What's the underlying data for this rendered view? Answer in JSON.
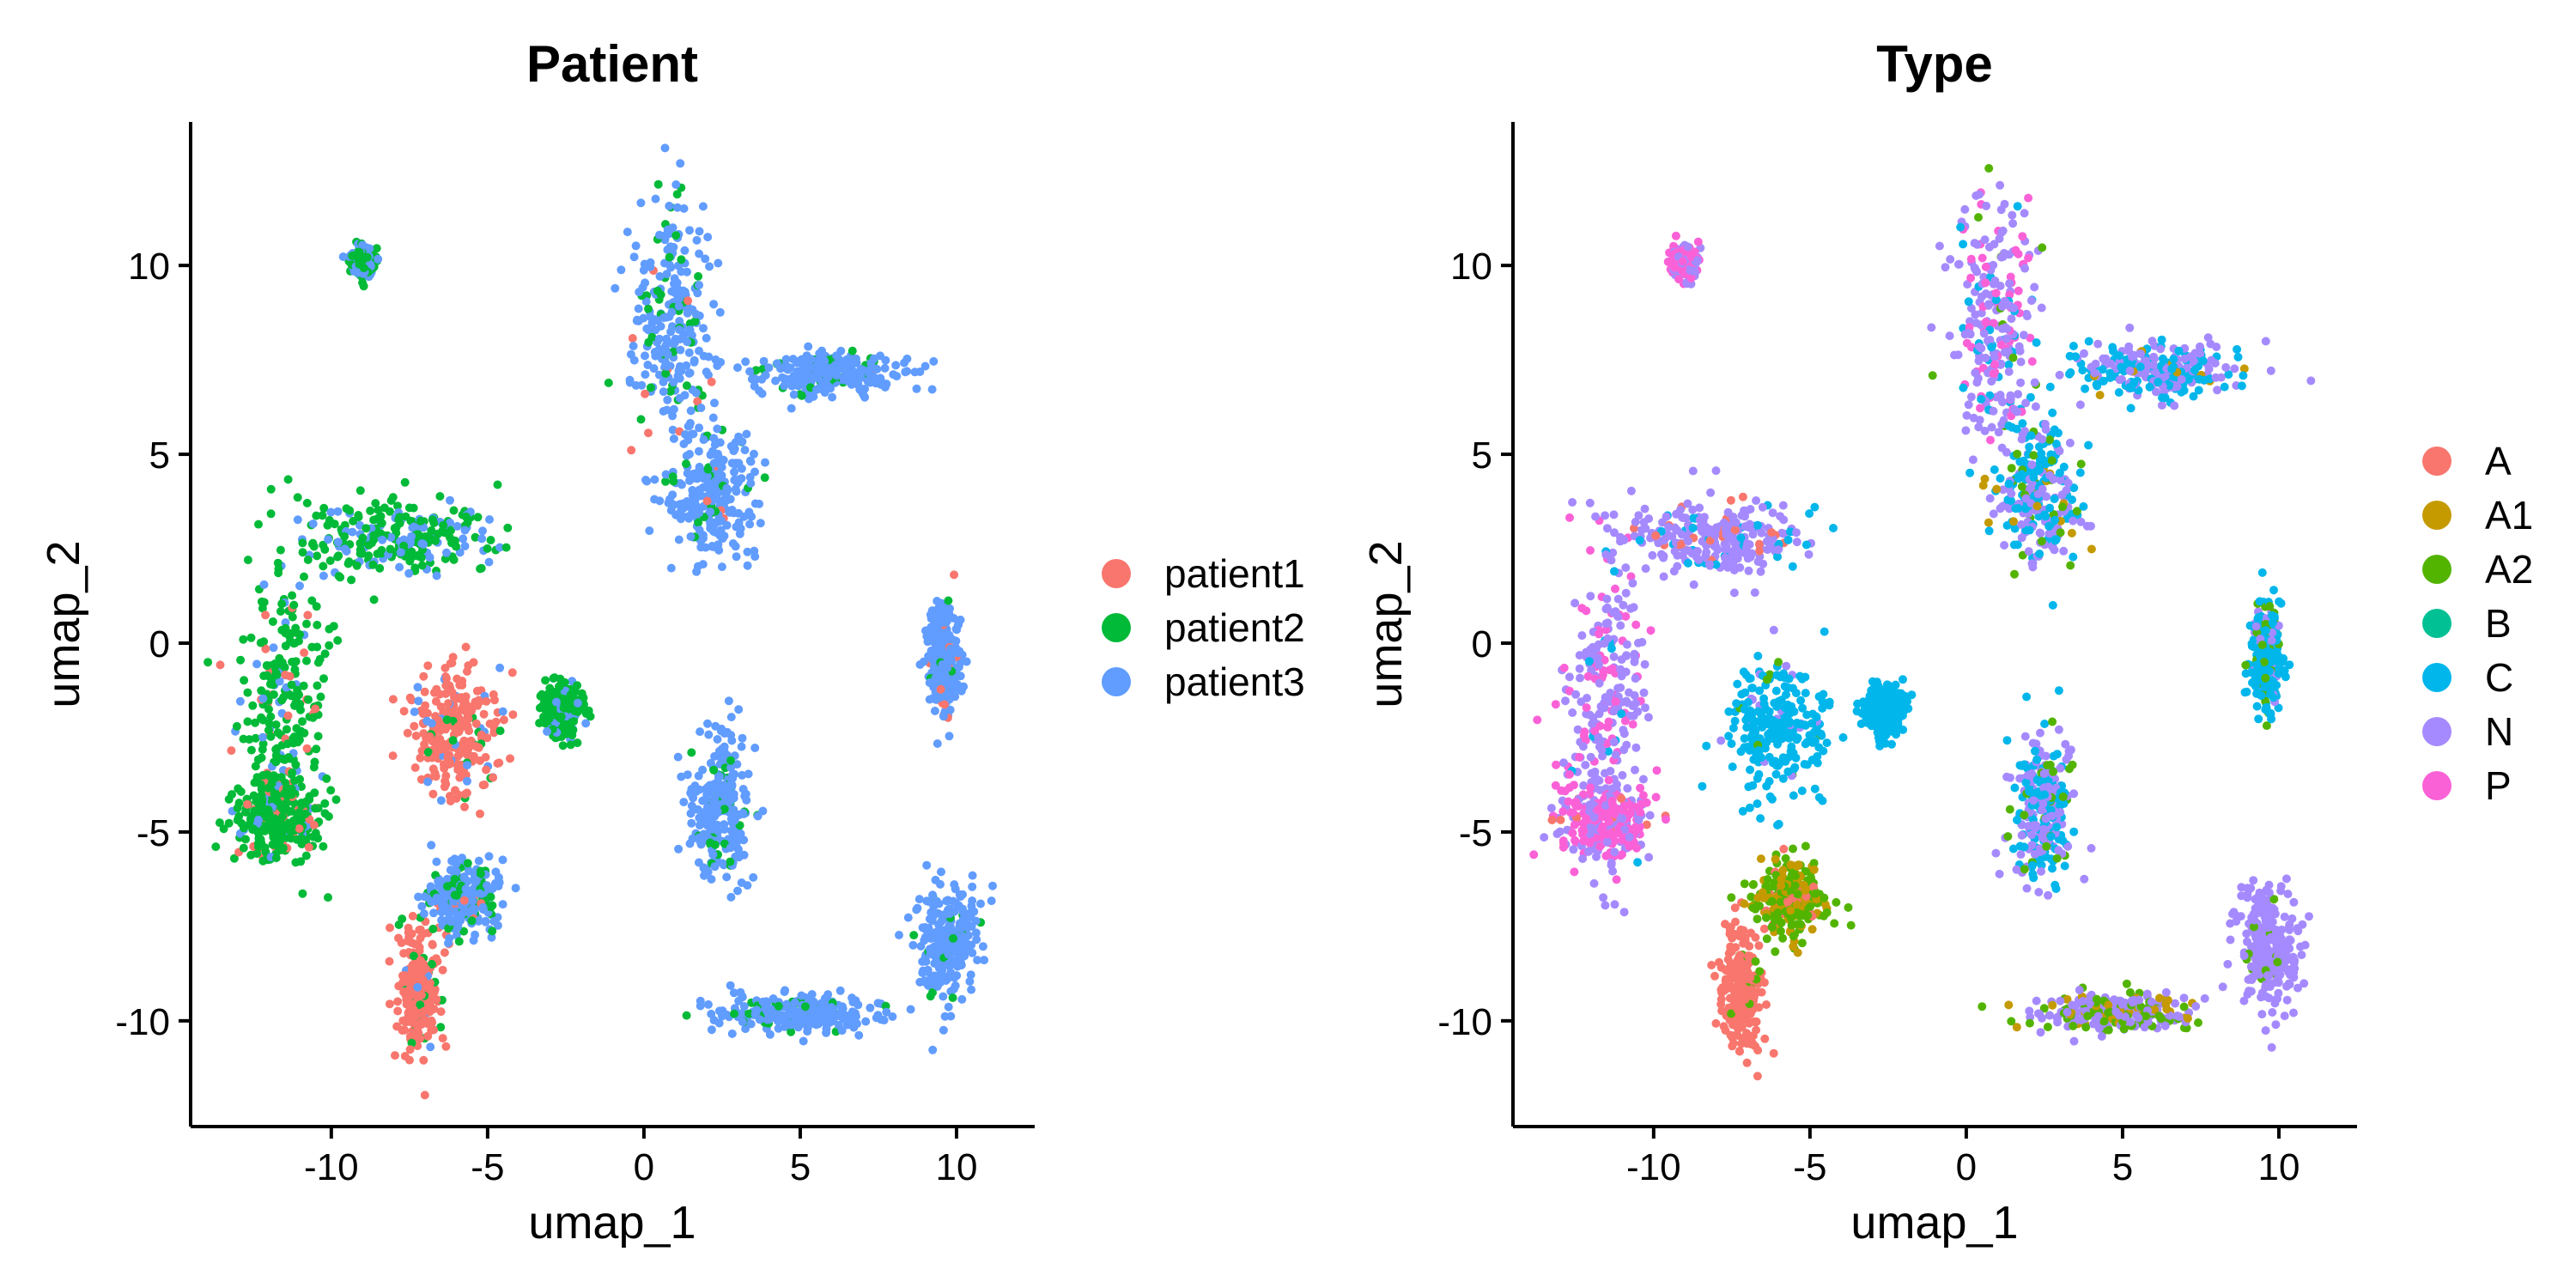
{
  "chart_data": [
    {
      "type": "scatter",
      "title": "Patient",
      "xlabel": "umap_1",
      "ylabel": "umap_2",
      "xlim": [
        -14.5,
        12.5
      ],
      "ylim": [
        -12.8,
        13.8
      ],
      "x_ticks": [
        -10,
        -5,
        0,
        5,
        10
      ],
      "y_ticks": [
        -10,
        -5,
        0,
        5,
        10
      ],
      "x_tick_labels": [
        "-10",
        "-5",
        "0",
        "5",
        "10"
      ],
      "y_tick_labels": [
        "-10",
        "-5",
        "0",
        "5",
        "10"
      ],
      "grid": false,
      "legend_position": "right",
      "series": [
        {
          "name": "patient1",
          "color": "#F8766D"
        },
        {
          "name": "patient2",
          "color": "#00BA38"
        },
        {
          "name": "patient3",
          "color": "#619CFF"
        }
      ],
      "clusters": [
        {
          "label": "top-center arm",
          "center": [
            0.9,
            8.5
          ],
          "spread": [
            1.2,
            3.0
          ],
          "composition": {
            "patient3": 0.8,
            "patient2": 0.17,
            "patient1": 0.03
          }
        },
        {
          "label": "top-center body",
          "center": [
            2.2,
            4.0
          ],
          "spread": [
            1.3,
            1.6
          ],
          "composition": {
            "patient3": 0.9,
            "patient2": 0.08,
            "patient1": 0.02
          }
        },
        {
          "label": "top-right branch",
          "center": [
            6.0,
            7.2
          ],
          "spread": [
            2.3,
            0.6
          ],
          "composition": {
            "patient3": 0.85,
            "patient2": 0.12,
            "patient1": 0.03
          }
        },
        {
          "label": "small top-left",
          "center": [
            -9.0,
            10.1
          ],
          "spread": [
            0.35,
            0.35
          ],
          "composition": {
            "patient2": 0.5,
            "patient3": 0.5
          }
        },
        {
          "label": "center-left loop",
          "center": [
            -6.0,
            -2.3
          ],
          "spread": [
            1.4,
            1.6
          ],
          "composition": {
            "patient1": 0.85,
            "patient3": 0.1,
            "patient2": 0.05
          }
        },
        {
          "label": "left outer arc",
          "center": [
            -11.5,
            -1.5
          ],
          "spread": [
            1.2,
            3.5
          ],
          "composition": {
            "patient2": 0.75,
            "patient3": 0.15,
            "patient1": 0.1
          }
        },
        {
          "label": "left lower lobe",
          "center": [
            -11.7,
            -4.7
          ],
          "spread": [
            1.3,
            0.9
          ],
          "composition": {
            "patient2": 0.8,
            "patient1": 0.12,
            "patient3": 0.08
          }
        },
        {
          "label": "upper-left ring",
          "center": [
            -8.0,
            2.8
          ],
          "spread": [
            2.8,
            0.9
          ],
          "composition": {
            "patient2": 0.7,
            "patient3": 0.3
          }
        },
        {
          "label": "right edge lobe",
          "center": [
            -2.6,
            -1.8
          ],
          "spread": [
            0.6,
            0.6
          ],
          "composition": {
            "patient2": 0.85,
            "patient3": 0.15
          }
        },
        {
          "label": "lower stem",
          "center": [
            -7.2,
            -9.2
          ],
          "spread": [
            0.6,
            1.6
          ],
          "composition": {
            "patient1": 0.9,
            "patient2": 0.08,
            "patient3": 0.02
          }
        },
        {
          "label": "lower connector",
          "center": [
            -5.7,
            -6.8
          ],
          "spread": [
            1.0,
            0.9
          ],
          "composition": {
            "patient3": 0.7,
            "patient2": 0.25,
            "patient1": 0.05
          }
        },
        {
          "label": "mid-right island",
          "center": [
            9.6,
            -0.4
          ],
          "spread": [
            0.45,
            1.3
          ],
          "composition": {
            "patient3": 0.88,
            "patient1": 0.07,
            "patient2": 0.05
          }
        },
        {
          "label": "center-lower island",
          "center": [
            2.4,
            -4.4
          ],
          "spread": [
            0.9,
            1.7
          ],
          "composition": {
            "patient3": 0.85,
            "patient2": 0.15
          }
        },
        {
          "label": "bottom-right blob",
          "center": [
            9.7,
            -8.0
          ],
          "spread": [
            0.9,
            1.4
          ],
          "composition": {
            "patient3": 0.95,
            "patient2": 0.05
          }
        },
        {
          "label": "bottom bridge",
          "center": [
            4.8,
            -9.8
          ],
          "spread": [
            2.5,
            0.45
          ],
          "composition": {
            "patient3": 0.9,
            "patient2": 0.1
          }
        }
      ]
    },
    {
      "type": "scatter",
      "title": "Type",
      "xlabel": "umap_1",
      "ylabel": "umap_2",
      "xlim": [
        -14.5,
        12.5
      ],
      "ylim": [
        -12.8,
        13.8
      ],
      "x_ticks": [
        -10,
        -5,
        0,
        5,
        10
      ],
      "y_ticks": [
        -10,
        -5,
        0,
        5,
        10
      ],
      "x_tick_labels": [
        "-10",
        "-5",
        "0",
        "5",
        "10"
      ],
      "y_tick_labels": [
        "-10",
        "-5",
        "0",
        "5",
        "10"
      ],
      "grid": false,
      "legend_position": "right",
      "series": [
        {
          "name": "A",
          "color": "#F8766D"
        },
        {
          "name": "A1",
          "color": "#C49A00"
        },
        {
          "name": "A2",
          "color": "#53B400"
        },
        {
          "name": "B",
          "color": "#00C094"
        },
        {
          "name": "C",
          "color": "#00B6EB"
        },
        {
          "name": "N",
          "color": "#A58AFF"
        },
        {
          "name": "P",
          "color": "#FB61D7"
        }
      ],
      "clusters": [
        {
          "label": "top-center arm",
          "center": [
            0.9,
            8.5
          ],
          "spread": [
            1.2,
            3.0
          ],
          "composition": {
            "N": 0.6,
            "P": 0.25,
            "C": 0.1,
            "A2": 0.05
          }
        },
        {
          "label": "top-center body",
          "center": [
            2.2,
            4.0
          ],
          "spread": [
            1.3,
            1.6
          ],
          "composition": {
            "C": 0.5,
            "N": 0.35,
            "A2": 0.1,
            "A1": 0.05
          }
        },
        {
          "label": "top-right branch",
          "center": [
            6.0,
            7.2
          ],
          "spread": [
            2.3,
            0.6
          ],
          "composition": {
            "C": 0.5,
            "N": 0.45,
            "A1": 0.05
          }
        },
        {
          "label": "small top-left",
          "center": [
            -9.0,
            10.1
          ],
          "spread": [
            0.35,
            0.35
          ],
          "composition": {
            "P": 0.6,
            "N": 0.4
          }
        },
        {
          "label": "center-left loop",
          "center": [
            -6.0,
            -2.3
          ],
          "spread": [
            1.4,
            1.6
          ],
          "composition": {
            "C": 0.92,
            "N": 0.05,
            "A2": 0.03
          }
        },
        {
          "label": "left outer arc",
          "center": [
            -11.5,
            -1.5
          ],
          "spread": [
            1.2,
            3.5
          ],
          "composition": {
            "N": 0.65,
            "P": 0.3,
            "C": 0.05
          }
        },
        {
          "label": "left lower lobe",
          "center": [
            -11.7,
            -4.7
          ],
          "spread": [
            1.3,
            0.9
          ],
          "composition": {
            "P": 0.6,
            "N": 0.35,
            "A": 0.05
          }
        },
        {
          "label": "upper-left ring",
          "center": [
            -8.0,
            2.8
          ],
          "spread": [
            2.8,
            0.9
          ],
          "composition": {
            "N": 0.75,
            "C": 0.15,
            "A": 0.1
          }
        },
        {
          "label": "right edge lobe",
          "center": [
            -2.6,
            -1.8
          ],
          "spread": [
            0.6,
            0.6
          ],
          "composition": {
            "C": 1.0
          }
        },
        {
          "label": "lower stem",
          "center": [
            -7.2,
            -9.2
          ],
          "spread": [
            0.6,
            1.6
          ],
          "composition": {
            "A": 0.95,
            "A2": 0.05
          }
        },
        {
          "label": "lower connector",
          "center": [
            -5.7,
            -6.8
          ],
          "spread": [
            1.0,
            0.9
          ],
          "composition": {
            "A2": 0.6,
            "A1": 0.3,
            "A": 0.1
          }
        },
        {
          "label": "mid-right island",
          "center": [
            9.6,
            -0.4
          ],
          "spread": [
            0.45,
            1.3
          ],
          "composition": {
            "C": 0.7,
            "A2": 0.2,
            "N": 0.1
          }
        },
        {
          "label": "center-lower island",
          "center": [
            2.4,
            -4.4
          ],
          "spread": [
            0.9,
            1.7
          ],
          "composition": {
            "C": 0.45,
            "N": 0.45,
            "A2": 0.1
          }
        },
        {
          "label": "bottom-right blob",
          "center": [
            9.7,
            -8.0
          ],
          "spread": [
            0.9,
            1.4
          ],
          "composition": {
            "N": 0.92,
            "A2": 0.08
          }
        },
        {
          "label": "bottom bridge",
          "center": [
            4.8,
            -9.8
          ],
          "spread": [
            2.5,
            0.45
          ],
          "composition": {
            "N": 0.55,
            "A2": 0.3,
            "A1": 0.15
          }
        }
      ]
    }
  ]
}
